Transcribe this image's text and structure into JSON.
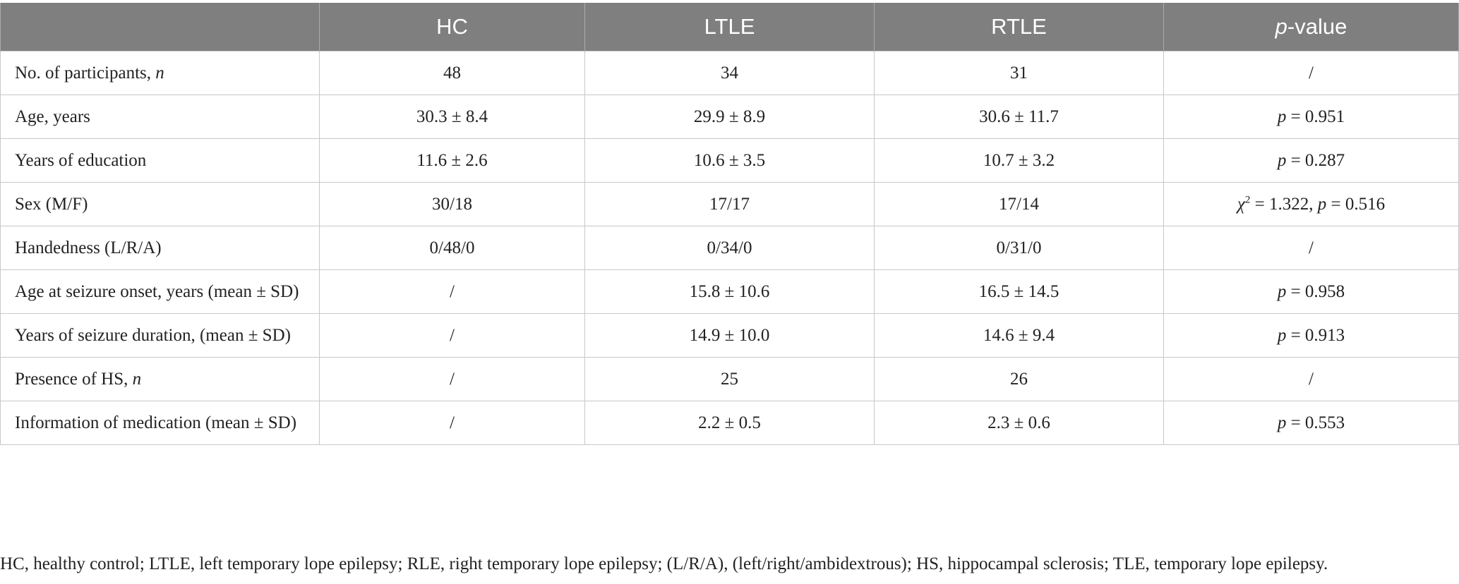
{
  "table": {
    "header": [
      [],
      [
        {
          "text": "HC"
        }
      ],
      [
        {
          "text": "LTLE"
        }
      ],
      [
        {
          "text": "RTLE"
        }
      ],
      [
        {
          "text": "p",
          "style": "italic"
        },
        {
          "text": "-value"
        }
      ]
    ],
    "rows": [
      [
        [
          {
            "text": "No. of participants, "
          },
          {
            "text": "n",
            "style": "italic"
          }
        ],
        [
          {
            "text": "48"
          }
        ],
        [
          {
            "text": "34"
          }
        ],
        [
          {
            "text": "31"
          }
        ],
        [
          {
            "text": "/"
          }
        ]
      ],
      [
        [
          {
            "text": "Age, years"
          }
        ],
        [
          {
            "text": "30.3 ± 8.4"
          }
        ],
        [
          {
            "text": "29.9 ± 8.9"
          }
        ],
        [
          {
            "text": "30.6 ± 11.7"
          }
        ],
        [
          {
            "text": "p",
            "style": "italic"
          },
          {
            "text": " = 0.951"
          }
        ]
      ],
      [
        [
          {
            "text": "Years of education"
          }
        ],
        [
          {
            "text": "11.6 ± 2.6"
          }
        ],
        [
          {
            "text": "10.6 ± 3.5"
          }
        ],
        [
          {
            "text": "10.7 ± 3.2"
          }
        ],
        [
          {
            "text": "p",
            "style": "italic"
          },
          {
            "text": " = 0.287"
          }
        ]
      ],
      [
        [
          {
            "text": "Sex (M/F)"
          }
        ],
        [
          {
            "text": "30/18"
          }
        ],
        [
          {
            "text": "17/17"
          }
        ],
        [
          {
            "text": "17/14"
          }
        ],
        [
          {
            "text": "χ",
            "style": "italic"
          },
          {
            "text": "2",
            "style": "sup"
          },
          {
            "text": " = 1.322, "
          },
          {
            "text": "p",
            "style": "italic"
          },
          {
            "text": " = 0.516"
          }
        ]
      ],
      [
        [
          {
            "text": "Handedness (L/R/A)"
          }
        ],
        [
          {
            "text": "0/48/0"
          }
        ],
        [
          {
            "text": "0/34/0"
          }
        ],
        [
          {
            "text": "0/31/0"
          }
        ],
        [
          {
            "text": "/"
          }
        ]
      ],
      [
        [
          {
            "text": "Age at seizure onset, years (mean ± SD)"
          }
        ],
        [
          {
            "text": "/"
          }
        ],
        [
          {
            "text": "15.8 ± 10.6"
          }
        ],
        [
          {
            "text": "16.5 ± 14.5"
          }
        ],
        [
          {
            "text": "p",
            "style": "italic"
          },
          {
            "text": " = 0.958"
          }
        ]
      ],
      [
        [
          {
            "text": "Years of seizure duration, (mean ± SD)"
          }
        ],
        [
          {
            "text": "/"
          }
        ],
        [
          {
            "text": "14.9 ± 10.0"
          }
        ],
        [
          {
            "text": "14.6 ± 9.4"
          }
        ],
        [
          {
            "text": "p",
            "style": "italic"
          },
          {
            "text": " = 0.913"
          }
        ]
      ],
      [
        [
          {
            "text": "Presence of HS, "
          },
          {
            "text": "n",
            "style": "italic"
          }
        ],
        [
          {
            "text": "/"
          }
        ],
        [
          {
            "text": "25"
          }
        ],
        [
          {
            "text": "26"
          }
        ],
        [
          {
            "text": "/"
          }
        ]
      ],
      [
        [
          {
            "text": "Information of medication (mean ± SD)"
          }
        ],
        [
          {
            "text": "/"
          }
        ],
        [
          {
            "text": "2.2 ± 0.5"
          }
        ],
        [
          {
            "text": "2.3 ± 0.6"
          }
        ],
        [
          {
            "text": "p",
            "style": "italic"
          },
          {
            "text": " = 0.553"
          }
        ]
      ]
    ]
  },
  "footnote": "HC, healthy control; LTLE, left temporary lope epilepsy; RLE, right temporary lope epilepsy; (L/R/A), (left/right/ambidextrous); HS, hippocampal sclerosis; TLE, temporary lope epilepsy."
}
